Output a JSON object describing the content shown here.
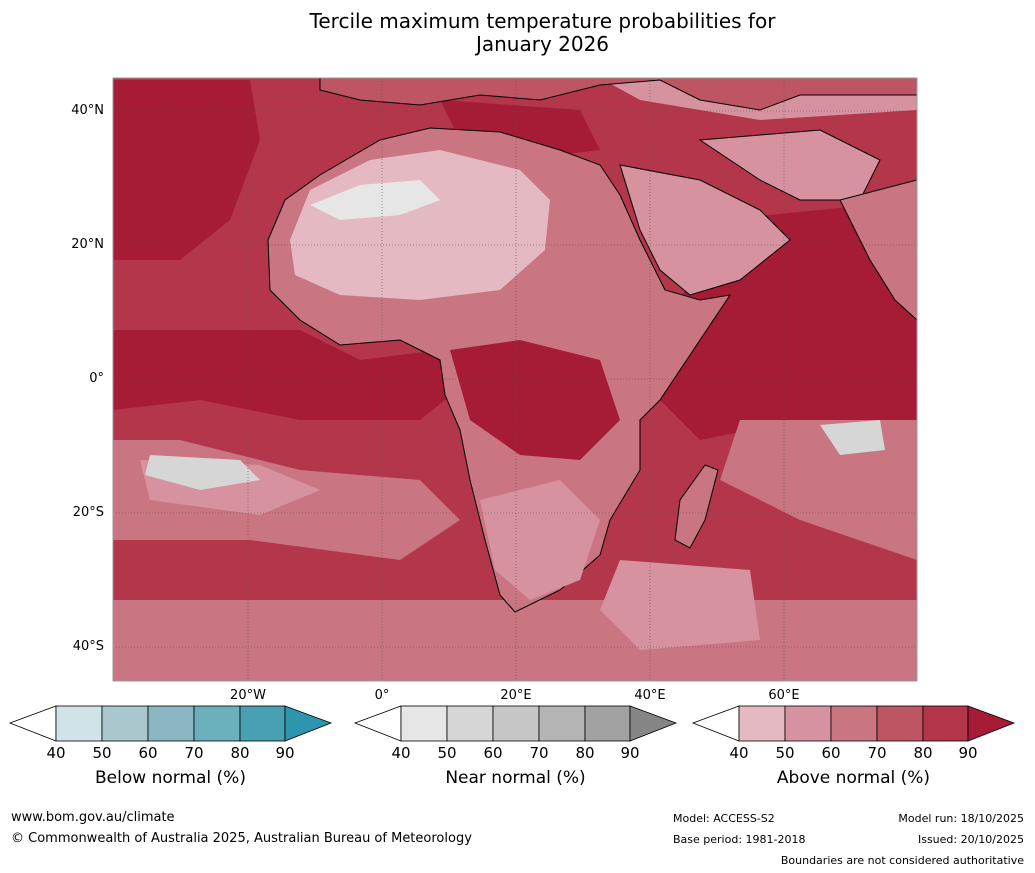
{
  "title": {
    "line1": "Tercile maximum temperature probabilities for",
    "line2": "January 2026"
  },
  "map": {
    "region": "Africa",
    "lat_ticks": [
      "40°N",
      "20°N",
      "0°",
      "20°S",
      "40°S"
    ],
    "lon_ticks": [
      "20°W",
      "0°",
      "20°E",
      "40°E",
      "60°E"
    ],
    "colors": {
      "ocean_base": "#b51d3c",
      "frame": "#9a9a9a",
      "coast": "#000000",
      "borders": "#8a8a8a"
    }
  },
  "legends": [
    {
      "title": "Below normal (%)",
      "ticks": [
        "40",
        "50",
        "60",
        "70",
        "80",
        "90"
      ],
      "colors": [
        "#ffffff",
        "#cfe3e9",
        "#a9c7cd",
        "#8ab7c2",
        "#6cb0be",
        "#48a0b2",
        "#2d95ad"
      ]
    },
    {
      "title": "Near normal (%)",
      "ticks": [
        "40",
        "50",
        "60",
        "70",
        "80",
        "90"
      ],
      "colors": [
        "#ffffff",
        "#e6e6e6",
        "#d6d6d6",
        "#c6c6c6",
        "#b4b4b4",
        "#a2a2a2",
        "#858585"
      ]
    },
    {
      "title": "Above normal (%)",
      "ticks": [
        "40",
        "50",
        "60",
        "70",
        "80",
        "90"
      ],
      "colors": [
        "#ffffff",
        "#e5b9c1",
        "#d6939f",
        "#c97582",
        "#be5563",
        "#b3364a",
        "#a61b35"
      ]
    }
  ],
  "footer": {
    "website": "www.bom.gov.au/climate",
    "copyright": "© Commonwealth of Australia 2025, Australian Bureau of Meteorology",
    "model": "Model: ACCESS-S2",
    "base_period": "Base period: 1981-2018",
    "model_run": "Model run: 18/10/2025",
    "issued": "Issued: 20/10/2025",
    "disclaimer": "Boundaries are not considered authoritative"
  }
}
